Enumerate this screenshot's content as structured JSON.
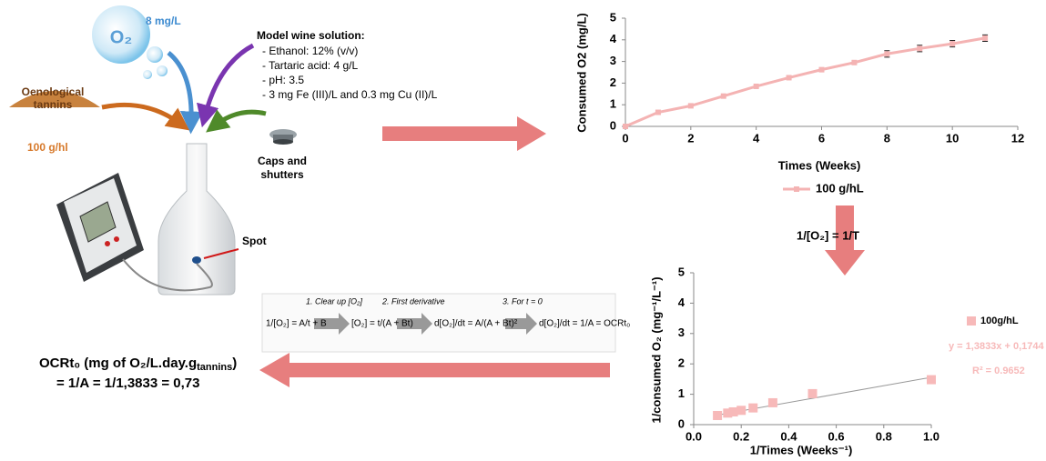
{
  "diagram": {
    "oxygen": {
      "symbol": "O₂",
      "concentration": "8 mg/L"
    },
    "tannins": {
      "label": [
        "Oenological",
        "tannins"
      ],
      "dose": "100 g/hl"
    },
    "model_wine": {
      "title": "Model wine solution:",
      "items": [
        "- Ethanol: 12% (v/v)",
        "- Tartaric acid: 4 g/L",
        "- pH: 3.5",
        "- 3 mg Fe (III)/L and 0.3 mg Cu (II)/L"
      ]
    },
    "caps": [
      "Caps and",
      "shutters"
    ],
    "spot": "Spot",
    "transform": "1/[O₂] = 1/T",
    "equation": {
      "steps": [
        "1. Clear up [O₂]",
        "2. First derivative",
        "3. For t = 0"
      ],
      "formulas": [
        "1/[O₂] = A/t + B",
        "[O₂] = t/(A + Bt)",
        "d[O₂]/dt = A/(A + Bt)²",
        "d[O₂]/dt = 1/A = OCRt₀"
      ]
    },
    "result": {
      "main": "OCRt₀ (mg of O₂/L.day.g",
      "sub": "tannins",
      "end": ")",
      "line2": "= 1/A = 1/1,3833 = 0,73"
    }
  },
  "chart_data": [
    {
      "type": "line",
      "x_label": "Times (Weeks)",
      "y_label": "Consumed O2 (mg/L)",
      "x": [
        0,
        1,
        2,
        3,
        4,
        5,
        6,
        7,
        8,
        9,
        10,
        11
      ],
      "series": [
        {
          "name": "100 g/hL",
          "color": "#f4b3b3",
          "values": [
            0,
            0.65,
            0.95,
            1.4,
            1.85,
            2.25,
            2.62,
            2.95,
            3.35,
            3.6,
            3.82,
            4.08
          ],
          "errors": [
            null,
            null,
            null,
            null,
            null,
            null,
            null,
            null,
            0.15,
            0.15,
            0.15,
            0.15
          ]
        }
      ],
      "xlim": [
        0,
        12
      ],
      "xticks": [
        0,
        2,
        4,
        6,
        8,
        10,
        12
      ],
      "ylim": [
        0,
        5
      ],
      "yticks": [
        0,
        1,
        2,
        3,
        4,
        5
      ]
    },
    {
      "type": "scatter",
      "x_label": "1/Times (Weeks⁻¹)",
      "y_label": "1/consumed O₂ (mg⁻¹/L⁻¹)",
      "x": [
        0.1,
        0.143,
        0.167,
        0.2,
        0.25,
        0.333,
        0.5,
        1.0
      ],
      "series": [
        {
          "name": "100g/hL",
          "color": "#f7b9b9",
          "values": [
            0.3,
            0.38,
            0.42,
            0.47,
            0.55,
            0.72,
            1.02,
            1.48
          ]
        }
      ],
      "trendline": {
        "slope": 1.3833,
        "intercept": 0.1744,
        "equation": "y = 1,3833x + 0,1744",
        "r2": "R² = 0.9652"
      },
      "xlim": [
        0,
        1
      ],
      "xticks": [
        {
          "value": 0,
          "label": "0.0"
        },
        0.2,
        0.4,
        0.6,
        0.8,
        {
          "value": 1,
          "label": "1.0"
        }
      ],
      "ylim": [
        0,
        5
      ],
      "yticks": [
        0,
        1,
        2,
        3,
        4,
        5
      ]
    }
  ]
}
